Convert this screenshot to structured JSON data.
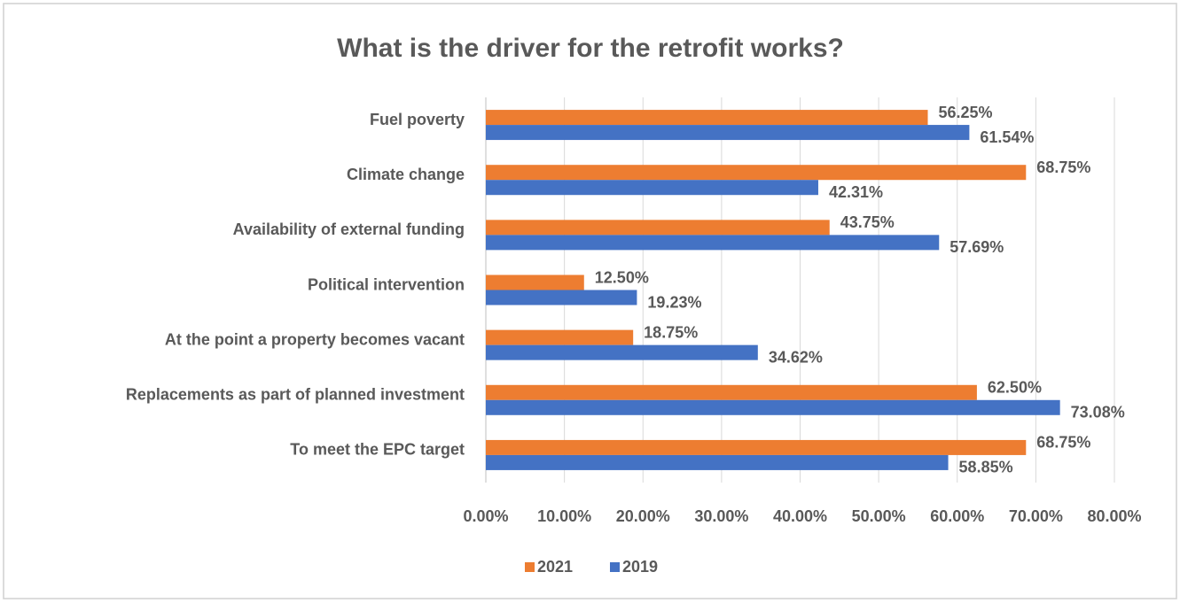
{
  "chart_data": {
    "type": "bar",
    "orientation": "horizontal",
    "title": "What is the driver for the retrofit works?",
    "categories": [
      "Fuel poverty",
      "Climate change",
      "Availability of external funding",
      "Political intervention",
      "At the point a property becomes vacant",
      "Replacements as part of planned investment",
      "To meet the EPC target"
    ],
    "series": [
      {
        "name": "2021",
        "color": "#ed7d31",
        "values": [
          56.25,
          68.75,
          43.75,
          12.5,
          18.75,
          62.5,
          68.75
        ],
        "value_labels": [
          "56.25%",
          "68.75%",
          "43.75%",
          "12.50%",
          "18.75%",
          "62.50%",
          "68.75%"
        ]
      },
      {
        "name": "2019",
        "color": "#4472c4",
        "values": [
          61.54,
          42.31,
          57.69,
          19.23,
          34.62,
          73.08,
          58.85
        ],
        "value_labels": [
          "61.54%",
          "42.31%",
          "57.69%",
          "19.23%",
          "34.62%",
          "73.08%",
          "58.85%"
        ]
      }
    ],
    "xlim": [
      0,
      80
    ],
    "xticks": [
      {
        "value": 0,
        "label": "0.00%"
      },
      {
        "value": 10,
        "label": "10.00%"
      },
      {
        "value": 20,
        "label": "20.00%"
      },
      {
        "value": 30,
        "label": "30.00%"
      },
      {
        "value": 40,
        "label": "40.00%"
      },
      {
        "value": 50,
        "label": "50.00%"
      },
      {
        "value": 60,
        "label": "60.00%"
      },
      {
        "value": 70,
        "label": "70.00%"
      },
      {
        "value": 80,
        "label": "80.00%"
      }
    ],
    "grid": true,
    "legend": "bottom"
  }
}
